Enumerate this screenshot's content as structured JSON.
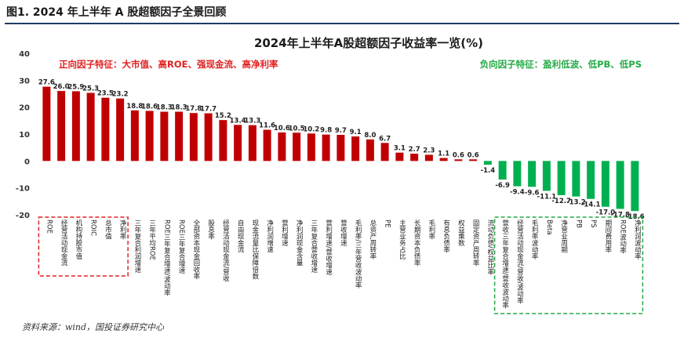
{
  "figure": {
    "label": "图1. 2024 年上半年 A 股超额因子全景回顾",
    "source": "资料来源：wind，国投证券研究中心"
  },
  "colors": {
    "positive": "#c00000",
    "negative": "#00b050",
    "header_rule": "#1f3b63",
    "pos_box": "#e02020",
    "neg_box": "#22aa44"
  },
  "chart_data": {
    "type": "bar",
    "title": "2024年上半年A股超额因子收益率一览(%)",
    "xlabel": "",
    "ylabel": "",
    "ylim": [
      -20,
      40
    ],
    "yticks": [
      -20,
      -10,
      0,
      10,
      20,
      30,
      40
    ],
    "grid": false,
    "categories": [
      "ROE",
      "经营活动现金流",
      "机构持股市值",
      "ROIC",
      "总市值",
      "净利率",
      "三年复合利润增速",
      "三年平均ROE",
      "ROE三年复合增速/波动率",
      "ROE三年复合增速",
      "全部资本现金回收率",
      "股息率",
      "经营活动现金流/营收",
      "自由现金流",
      "现金流量比保障倍数",
      "净利润增速",
      "营利增速",
      "净利润现金含量",
      "三年复合营收增速",
      "营利增速/营收增速",
      "营收增速",
      "毛利率/三年营收波动率",
      "总资产周转率",
      "PE",
      "主营业务占比",
      "长期资本负债率",
      "毛利率",
      "有息负债率",
      "权益乘数",
      "固定资产周转率",
      "流动负债/权益比率",
      "营收三年复合增速/营收波动率",
      "经营活动现金流/营收/波动率",
      "毛利率波动率",
      "Beta",
      "净营业周期",
      "PB",
      "PS",
      "期间费用率",
      "ROE波动率",
      "净利润波动率"
    ],
    "values": [
      27.6,
      26.0,
      25.9,
      25.3,
      23.5,
      23.2,
      18.8,
      18.6,
      18.3,
      18.3,
      17.8,
      17.7,
      15.2,
      13.4,
      13.3,
      11.6,
      10.6,
      10.5,
      10.2,
      9.8,
      9.7,
      9.1,
      8.0,
      6.7,
      3.1,
      2.7,
      2.3,
      1.1,
      0.6,
      0.6,
      -1.4,
      -6.9,
      -9.4,
      -9.6,
      -11.1,
      -12.7,
      -13.2,
      -14.1,
      -17.0,
      -17.8,
      -18.6
    ],
    "value_labels": [
      "27.6",
      "26.0",
      "25.9",
      "25.3",
      "23.5",
      "23.2",
      "18.8",
      "18.6",
      "18.3",
      "18.3",
      "17.8",
      "17.7",
      "15.2",
      "13.4",
      "13.3",
      "11.6",
      "10.6",
      "10.5",
      "10.2",
      "9.8",
      "9.7",
      "9.1",
      "8.0",
      "6.7",
      "3.1",
      "2.7",
      "2.3",
      "1.1",
      "0.6",
      "0.6",
      "-1.4",
      "-6.9",
      "-9.4",
      "-9.6",
      "-11.1",
      "-12.7",
      "-13.2",
      "-14.1",
      "-17.0",
      "-17.8",
      "-18.6"
    ],
    "annotations": [
      {
        "text": "正向因子特征：大市值、高ROE、强现金流、高净利率",
        "anchor": "top-left",
        "color": "#e02020"
      },
      {
        "text": "负向因子特征：盈利低波、低PB、低PS",
        "anchor": "top-right",
        "color": "#22aa44"
      }
    ],
    "highlight_groups": [
      {
        "name": "positive-top",
        "first_index": 0,
        "last_index": 5,
        "color": "#e02020"
      },
      {
        "name": "negative-bottom",
        "first_index": 31,
        "last_index": 40,
        "color": "#22aa44"
      }
    ]
  }
}
